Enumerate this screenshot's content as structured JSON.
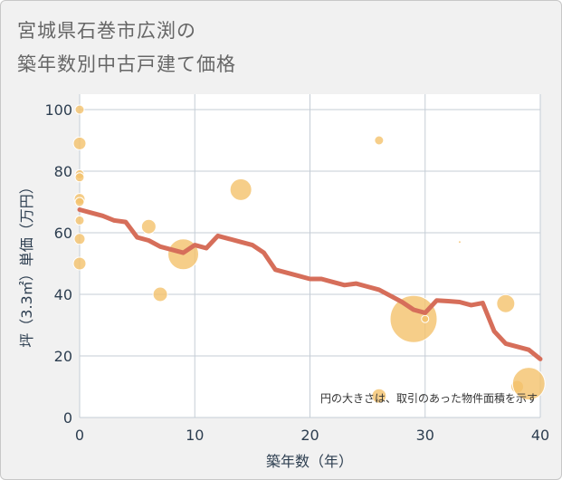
{
  "title_lines": [
    "宮城県石巻市広渕の",
    "築年数別中古戸建て価格"
  ],
  "chart_data": {
    "type": "scatter",
    "xlabel": "築年数（年）",
    "ylabel": "坪（3.3㎡）単価（万円）",
    "xlim": [
      0,
      40
    ],
    "ylim": [
      0,
      105
    ],
    "xticks": [
      0,
      10,
      20,
      30,
      40
    ],
    "yticks": [
      0,
      20,
      40,
      60,
      80,
      100
    ],
    "grid": true,
    "note": "円の大きさは、取引のあった物件面積を示す",
    "colors": {
      "bubble": "#f4c26b",
      "line": "#d66e5a",
      "grid": "#c5cdd6",
      "plot_bg": "#ffffff"
    },
    "points": [
      {
        "x": 0,
        "y": 100,
        "size": 5
      },
      {
        "x": 0,
        "y": 89,
        "size": 7
      },
      {
        "x": 0,
        "y": 79,
        "size": 5
      },
      {
        "x": 0,
        "y": 78,
        "size": 5
      },
      {
        "x": 0,
        "y": 71,
        "size": 6
      },
      {
        "x": 0,
        "y": 70,
        "size": 5
      },
      {
        "x": 0,
        "y": 64,
        "size": 5
      },
      {
        "x": 0,
        "y": 58,
        "size": 6
      },
      {
        "x": 0,
        "y": 50,
        "size": 7
      },
      {
        "x": 6,
        "y": 62,
        "size": 8
      },
      {
        "x": 7,
        "y": 40,
        "size": 8
      },
      {
        "x": 9,
        "y": 53,
        "size": 17
      },
      {
        "x": 14,
        "y": 74,
        "size": 12
      },
      {
        "x": 26,
        "y": 90,
        "size": 5
      },
      {
        "x": 26,
        "y": 7,
        "size": 8
      },
      {
        "x": 29,
        "y": 32,
        "size": 26
      },
      {
        "x": 30,
        "y": 32,
        "size": 4
      },
      {
        "x": 33,
        "y": 57,
        "size": 1.5
      },
      {
        "x": 37,
        "y": 37,
        "size": 10
      },
      {
        "x": 38,
        "y": 10,
        "size": 7
      },
      {
        "x": 39,
        "y": 11,
        "size": 18
      }
    ],
    "trend": [
      {
        "x": 0,
        "y": 67.5
      },
      {
        "x": 1,
        "y": 66.5
      },
      {
        "x": 2,
        "y": 65.5
      },
      {
        "x": 3,
        "y": 64
      },
      {
        "x": 4,
        "y": 63.5
      },
      {
        "x": 5,
        "y": 58.5
      },
      {
        "x": 6,
        "y": 57.5
      },
      {
        "x": 7,
        "y": 55.5
      },
      {
        "x": 8,
        "y": 54.5
      },
      {
        "x": 9,
        "y": 53.5
      },
      {
        "x": 10,
        "y": 56
      },
      {
        "x": 11,
        "y": 55
      },
      {
        "x": 12,
        "y": 59
      },
      {
        "x": 13,
        "y": 58
      },
      {
        "x": 14,
        "y": 57
      },
      {
        "x": 15,
        "y": 56
      },
      {
        "x": 16,
        "y": 53.5
      },
      {
        "x": 17,
        "y": 48
      },
      {
        "x": 18,
        "y": 47
      },
      {
        "x": 19,
        "y": 46
      },
      {
        "x": 20,
        "y": 45
      },
      {
        "x": 21,
        "y": 45
      },
      {
        "x": 22,
        "y": 44
      },
      {
        "x": 23,
        "y": 43
      },
      {
        "x": 24,
        "y": 43.5
      },
      {
        "x": 25,
        "y": 42.5
      },
      {
        "x": 26,
        "y": 41.5
      },
      {
        "x": 27,
        "y": 39.5
      },
      {
        "x": 28,
        "y": 37.5
      },
      {
        "x": 29,
        "y": 35
      },
      {
        "x": 30,
        "y": 34
      },
      {
        "x": 31,
        "y": 38
      },
      {
        "x": 32,
        "y": 37.8
      },
      {
        "x": 33,
        "y": 37.5
      },
      {
        "x": 34,
        "y": 36.5
      },
      {
        "x": 35,
        "y": 37.2
      },
      {
        "x": 36,
        "y": 28
      },
      {
        "x": 37,
        "y": 24
      },
      {
        "x": 38,
        "y": 23
      },
      {
        "x": 39,
        "y": 22
      },
      {
        "x": 40,
        "y": 19
      }
    ]
  }
}
